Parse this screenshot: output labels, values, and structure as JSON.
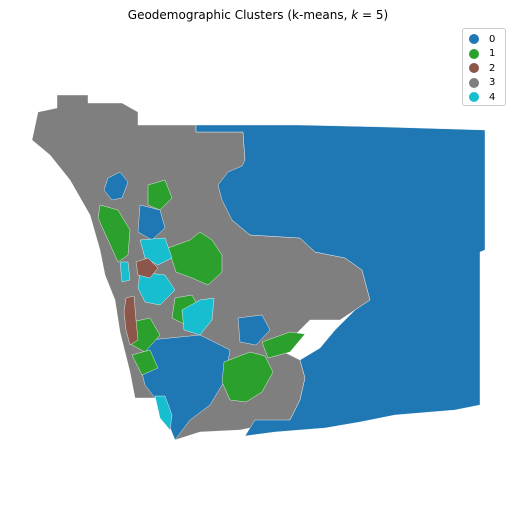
{
  "map": {
    "title_prefix": "Geodemographic Clusters (k-means, ",
    "title_k": "k",
    "title_suffix": " = 5)",
    "region": "San Diego County census tracts"
  },
  "legend": [
    {
      "label": "0",
      "color": "#1f77b4"
    },
    {
      "label": "1",
      "color": "#2ca02c"
    },
    {
      "label": "2",
      "color": "#8c564b"
    },
    {
      "label": "3",
      "color": "#7f7f7f"
    },
    {
      "label": "4",
      "color": "#17becf"
    }
  ],
  "chart_data": {
    "type": "choropleth",
    "categories": [
      "0",
      "1",
      "2",
      "3",
      "4"
    ],
    "colors": [
      "#1f77b4",
      "#2ca02c",
      "#8c564b",
      "#7f7f7f",
      "#17becf"
    ],
    "legend_position": "top-right",
    "axes": "off"
  }
}
